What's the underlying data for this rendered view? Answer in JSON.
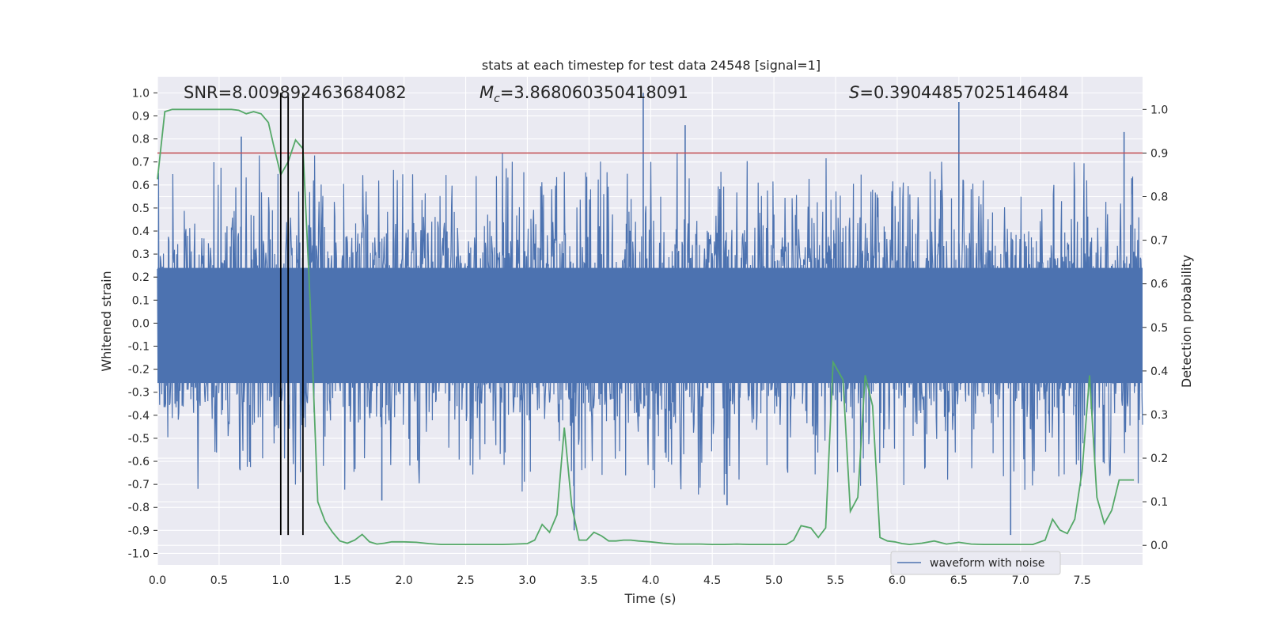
{
  "chart_data": {
    "type": "line",
    "title": "stats at each timestep for test data 24548 [signal=1]",
    "xlabel": "Time (s)",
    "ylabel": "Whitened strain",
    "ylabel_right": "Detection probability",
    "xlim": [
      0.0,
      7.99
    ],
    "ylim": [
      -1.05,
      1.07
    ],
    "ylim_right": [
      -0.045,
      1.075
    ],
    "x_ticks": [
      "0.0",
      "0.5",
      "1.0",
      "1.5",
      "2.0",
      "2.5",
      "3.0",
      "3.5",
      "4.0",
      "4.5",
      "5.0",
      "5.5",
      "6.0",
      "6.5",
      "7.0",
      "7.5"
    ],
    "y_ticks": [
      "-1.0",
      "-0.9",
      "-0.8",
      "-0.7",
      "-0.6",
      "-0.5",
      "-0.4",
      "-0.3",
      "-0.2",
      "-0.1",
      "0.0",
      "0.1",
      "0.2",
      "0.3",
      "0.4",
      "0.5",
      "0.6",
      "0.7",
      "0.8",
      "0.9",
      "1.0"
    ],
    "y_ticks_right": [
      "0.0",
      "0.1",
      "0.2",
      "0.3",
      "0.4",
      "0.5",
      "0.6",
      "0.7",
      "0.8",
      "0.9",
      "1.0"
    ],
    "grid": true,
    "legend_position": "lower-right",
    "annotations": {
      "snr": "SNR=8.009892463684082",
      "mc_symbol": "M",
      "mc_sub": "c",
      "mc_value": "=3.868060350418091",
      "s_symbol": "S",
      "s_value": "=0.39044857025146484"
    },
    "threshold": {
      "y_right": 0.9,
      "color": "#c44e52"
    },
    "vertical_markers_x": [
      1.0,
      1.06,
      1.18
    ],
    "marker_range_y": [
      -0.92,
      1.0
    ],
    "colors": {
      "waveform": "#4c72b0",
      "probability": "#55a868",
      "threshold": "#c44e52",
      "marker": "#000000",
      "plot_bg": "#eaeaf2",
      "grid": "#ffffff"
    },
    "series": [
      {
        "name": "waveform with noise",
        "axis": "left",
        "kind": "dense-noise",
        "envelope_typical": [
          -0.6,
          0.6
        ],
        "peaks": [
          {
            "x": 0.68,
            "y": 0.81
          },
          {
            "x": 3.94,
            "y": 1.0
          },
          {
            "x": 4.28,
            "y": 0.86
          },
          {
            "x": 6.5,
            "y": 0.96
          },
          {
            "x": 7.84,
            "y": 0.83
          },
          {
            "x": 6.92,
            "y": -0.92
          },
          {
            "x": 3.38,
            "y": -0.9
          },
          {
            "x": 4.62,
            "y": -0.79
          },
          {
            "x": 1.82,
            "y": -0.77
          }
        ]
      },
      {
        "name": "detection probability",
        "axis": "right",
        "x": [
          0.0,
          0.06,
          0.12,
          0.2,
          0.3,
          0.4,
          0.5,
          0.6,
          0.66,
          0.72,
          0.78,
          0.84,
          0.9,
          0.94,
          1.0,
          1.06,
          1.12,
          1.18,
          1.24,
          1.3,
          1.36,
          1.42,
          1.48,
          1.54,
          1.6,
          1.66,
          1.72,
          1.78,
          1.84,
          1.9,
          2.0,
          2.1,
          2.2,
          2.3,
          2.4,
          2.6,
          2.8,
          2.9,
          3.0,
          3.06,
          3.12,
          3.18,
          3.24,
          3.3,
          3.36,
          3.42,
          3.48,
          3.54,
          3.6,
          3.66,
          3.72,
          3.78,
          3.84,
          3.9,
          4.0,
          4.1,
          4.2,
          4.3,
          4.4,
          4.5,
          4.6,
          4.7,
          4.8,
          4.9,
          5.0,
          5.1,
          5.16,
          5.22,
          5.3,
          5.36,
          5.42,
          5.48,
          5.56,
          5.62,
          5.68,
          5.74,
          5.8,
          5.86,
          5.92,
          5.98,
          6.04,
          6.1,
          6.2,
          6.3,
          6.4,
          6.5,
          6.6,
          6.7,
          6.8,
          6.9,
          7.0,
          7.1,
          7.2,
          7.26,
          7.32,
          7.38,
          7.44,
          7.5,
          7.56,
          7.62,
          7.68,
          7.74,
          7.8,
          7.86,
          7.92
        ],
        "values": [
          0.84,
          0.995,
          1.0,
          1.0,
          1.0,
          1.0,
          1.0,
          1.0,
          0.998,
          0.99,
          0.995,
          0.99,
          0.97,
          0.92,
          0.85,
          0.88,
          0.93,
          0.91,
          0.55,
          0.1,
          0.055,
          0.03,
          0.01,
          0.005,
          0.012,
          0.025,
          0.008,
          0.003,
          0.005,
          0.008,
          0.008,
          0.007,
          0.004,
          0.002,
          0.002,
          0.002,
          0.002,
          0.003,
          0.004,
          0.012,
          0.048,
          0.03,
          0.07,
          0.27,
          0.09,
          0.012,
          0.012,
          0.03,
          0.022,
          0.01,
          0.01,
          0.012,
          0.012,
          0.01,
          0.008,
          0.005,
          0.003,
          0.003,
          0.003,
          0.002,
          0.002,
          0.003,
          0.002,
          0.002,
          0.002,
          0.002,
          0.012,
          0.045,
          0.04,
          0.018,
          0.04,
          0.42,
          0.38,
          0.078,
          0.11,
          0.39,
          0.32,
          0.018,
          0.01,
          0.008,
          0.004,
          0.002,
          0.005,
          0.01,
          0.003,
          0.007,
          0.003,
          0.002,
          0.002,
          0.002,
          0.002,
          0.002,
          0.012,
          0.06,
          0.035,
          0.027,
          0.06,
          0.17,
          0.39,
          0.11,
          0.05,
          0.08,
          0.15,
          0.15,
          0.15
        ]
      }
    ]
  },
  "legend": {
    "entries": [
      {
        "label": "waveform with noise",
        "color": "#4c72b0"
      }
    ]
  }
}
